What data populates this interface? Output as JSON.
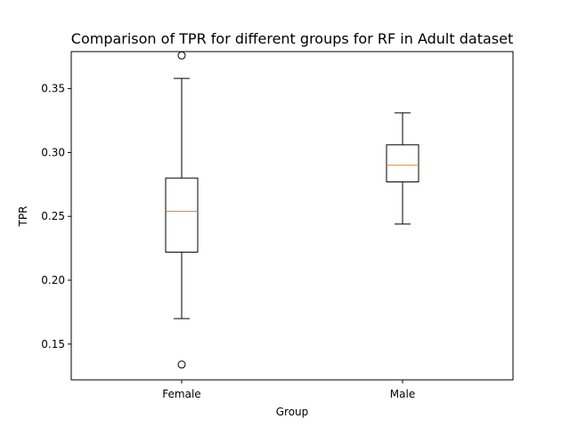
{
  "chart_data": {
    "type": "box",
    "title": "Comparison of TPR for different groups for RF in Adult dataset",
    "xlabel": "Group",
    "ylabel": "TPR",
    "ylim": [
      0.122,
      0.379
    ],
    "yticks": [
      "0.15",
      "0.20",
      "0.25",
      "0.30",
      "0.35"
    ],
    "ytick_values": [
      0.15,
      0.2,
      0.25,
      0.3,
      0.35
    ],
    "categories": [
      "Female",
      "Male"
    ],
    "boxes": [
      {
        "name": "Female",
        "whisker_low": 0.17,
        "q1": 0.222,
        "median": 0.254,
        "q3": 0.28,
        "whisker_high": 0.358,
        "outliers": [
          0.376,
          0.134
        ]
      },
      {
        "name": "Male",
        "whisker_low": 0.244,
        "q1": 0.277,
        "median": 0.29,
        "q3": 0.306,
        "whisker_high": 0.331,
        "outliers": []
      }
    ],
    "grid": false,
    "colors": {
      "box": "#000000",
      "median": "#ff7f0e",
      "background": "#ffffff"
    }
  }
}
